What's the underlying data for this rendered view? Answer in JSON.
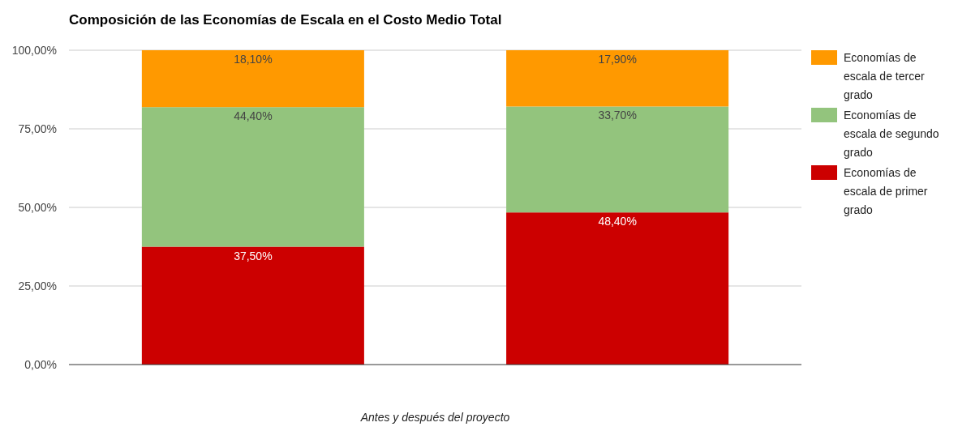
{
  "chart_data": {
    "type": "bar",
    "title": "Composición de las Economías de Escala en el Costo Medio Total",
    "xlabel": "Antes y después del proyecto",
    "categories": [
      null,
      null
    ],
    "stacked": true,
    "series": [
      {
        "name": "Economías de escala de primer grado",
        "color": "#cc0000",
        "values": [
          37.5,
          48.4
        ],
        "value_labels": [
          "37,50%",
          "48,40%"
        ]
      },
      {
        "name": "Economías de escala de segundo grado",
        "color": "#93c47d",
        "values": [
          44.4,
          33.7
        ],
        "value_labels": [
          "44,40%",
          "33,70%"
        ]
      },
      {
        "name": "Economías de escala de tercer grado",
        "color": "#ff9900",
        "values": [
          18.1,
          17.9
        ],
        "value_labels": [
          "18,10%",
          "17,90%"
        ]
      }
    ],
    "ylim": [
      0,
      100
    ],
    "yticks": [
      {
        "value": 0,
        "label": "0,00%"
      },
      {
        "value": 25,
        "label": "25,00%"
      },
      {
        "value": 50,
        "label": "50,00%"
      },
      {
        "value": 75,
        "label": "75,00%"
      },
      {
        "value": 100,
        "label": "100,00%"
      }
    ],
    "grid": "y",
    "legend": "right"
  }
}
